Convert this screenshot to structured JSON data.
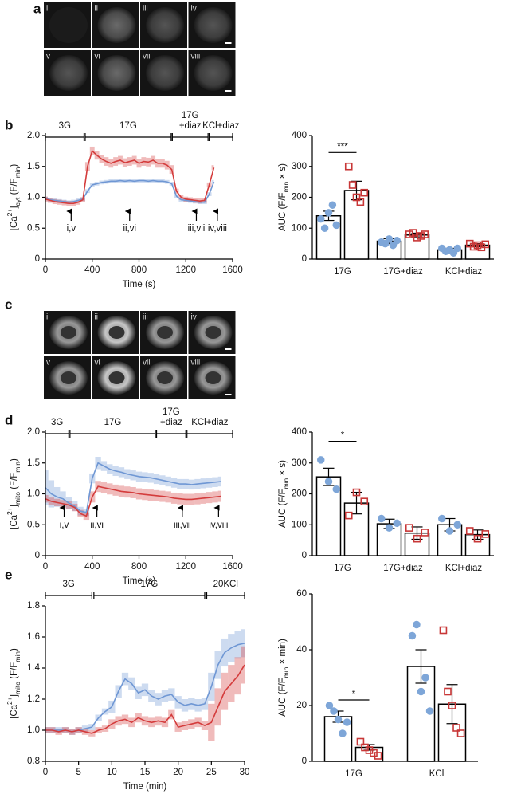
{
  "panel_labels": [
    "a",
    "b",
    "c",
    "d",
    "e"
  ],
  "image_panels": [
    {
      "labels": [
        "i",
        "ii",
        "iii",
        "iv",
        "v",
        "vi",
        "vii",
        "viii"
      ]
    },
    {
      "labels": [
        "i",
        "ii",
        "iii",
        "iv",
        "v",
        "vi",
        "vii",
        "viii"
      ]
    }
  ],
  "chart_data": [
    {
      "type": "line",
      "xlabel": "Time (s)",
      "ylabel": [
        {
          "text": "[Ca"
        },
        {
          "text": "2+",
          "shift": "super"
        },
        {
          "text": "]"
        },
        {
          "text": "cyt",
          "shift": "sub"
        },
        {
          "text": " (F/F"
        },
        {
          "text": "min",
          "shift": "sub"
        },
        {
          "text": ")"
        }
      ],
      "xlim": [
        0,
        1600
      ],
      "ylim": [
        0,
        2
      ],
      "xticks": [
        0,
        400,
        800,
        1200,
        1600
      ],
      "yticks": [
        0,
        0.5,
        {
          "value": 1,
          "label": "1.0"
        },
        1.5,
        {
          "value": 2,
          "label": "2.0"
        }
      ],
      "x": [
        0,
        40,
        80,
        120,
        160,
        200,
        240,
        280,
        320,
        360,
        400,
        440,
        480,
        520,
        560,
        600,
        640,
        680,
        720,
        760,
        800,
        840,
        880,
        920,
        960,
        1000,
        1040,
        1080,
        1120,
        1160,
        1200,
        1240,
        1280,
        1320,
        1360,
        1400,
        1440
      ],
      "series": [
        {
          "color": "#6f97d4",
          "values": [
            0.98,
            0.96,
            0.95,
            0.94,
            0.93,
            0.92,
            0.93,
            0.95,
            0.97,
            1.1,
            1.2,
            1.22,
            1.24,
            1.25,
            1.26,
            1.26,
            1.27,
            1.26,
            1.27,
            1.26,
            1.27,
            1.27,
            1.26,
            1.27,
            1.26,
            1.26,
            1.25,
            1.22,
            1.02,
            0.96,
            0.95,
            0.94,
            0.93,
            0.92,
            0.92,
            1.05,
            1.25
          ],
          "error": [
            0.03,
            0.03,
            0.03,
            0.03,
            0.03,
            0.03,
            0.03,
            0.03,
            0.03,
            0.03,
            0.03,
            0.03,
            0.03,
            0.03,
            0.03,
            0.03,
            0.03,
            0.03,
            0.03,
            0.03,
            0.03,
            0.03,
            0.03,
            0.03,
            0.03,
            0.03,
            0.03,
            0.03,
            0.03,
            0.03,
            0.03,
            0.03,
            0.03,
            0.03,
            0.03,
            0.03,
            0.03
          ]
        },
        {
          "color": "#d43c3c",
          "values": [
            0.97,
            0.95,
            0.93,
            0.92,
            0.91,
            0.9,
            0.9,
            0.92,
            0.96,
            1.5,
            1.75,
            1.68,
            1.62,
            1.58,
            1.55,
            1.58,
            1.6,
            1.56,
            1.58,
            1.6,
            1.55,
            1.58,
            1.57,
            1.6,
            1.55,
            1.55,
            1.52,
            1.45,
            1.1,
            1.0,
            0.97,
            0.96,
            0.95,
            0.94,
            0.95,
            1.2,
            1.48
          ],
          "error": [
            0.04,
            0.04,
            0.04,
            0.04,
            0.04,
            0.04,
            0.04,
            0.04,
            0.04,
            0.07,
            0.07,
            0.07,
            0.07,
            0.07,
            0.07,
            0.07,
            0.07,
            0.07,
            0.07,
            0.07,
            0.07,
            0.07,
            0.07,
            0.07,
            0.07,
            0.07,
            0.07,
            0.07,
            0.04,
            0.04,
            0.04,
            0.04,
            0.04,
            0.04,
            0.04,
            0.04,
            0.04
          ]
        }
      ],
      "protocol": [
        {
          "label": [
            "3G"
          ],
          "start": 0,
          "end": 330
        },
        {
          "label": [
            "17G"
          ],
          "start": 340,
          "end": 1075
        },
        {
          "label": [
            "17G",
            "+diaz"
          ],
          "start": 1085,
          "end": 1390
        },
        {
          "label": [
            "KCl+diaz"
          ],
          "start": 1400,
          "end": 1600
        }
      ],
      "arrows": [
        {
          "label": "i,v",
          "x": 220
        },
        {
          "label": "ii,vi",
          "x": 720
        },
        {
          "label": "iii,vii",
          "x": 1290
        },
        {
          "label": "iv,viii",
          "x": 1470
        }
      ]
    },
    {
      "type": "bar",
      "ylabel": [
        {
          "text": "AUC (F/F"
        },
        {
          "text": "min",
          "shift": "sub"
        },
        {
          "text": " × s)"
        }
      ],
      "categories": [
        "17G",
        "17G+diaz",
        "KCl+diaz"
      ],
      "ylim": [
        0,
        400
      ],
      "yticks": [
        0,
        100,
        200,
        300,
        400
      ],
      "series": [
        {
          "color": "#7ea6d8",
          "marker": "circle",
          "filled": true,
          "values": [
            140,
            58,
            30
          ],
          "error": [
            15,
            8,
            5
          ],
          "points": [
            [
              130,
              100,
              150,
              175,
              110
            ],
            [
              55,
              50,
              65,
              45,
              60
            ],
            [
              35,
              25,
              30,
              20,
              35
            ]
          ]
        },
        {
          "color": "#c83737",
          "marker": "square",
          "filled": false,
          "values": [
            222,
            78,
            45
          ],
          "error": [
            30,
            6,
            5
          ],
          "points": [
            [
              300,
              240,
              200,
              185,
              215
            ],
            [
              80,
              85,
              70,
              75,
              80
            ],
            [
              50,
              40,
              45,
              38,
              48
            ]
          ]
        }
      ],
      "annotations": [
        {
          "text": "***",
          "category": 0,
          "y": 345
        }
      ]
    },
    {
      "type": "line",
      "xlabel": "Time (s)",
      "ylabel": [
        {
          "text": "[Ca"
        },
        {
          "text": "2+",
          "shift": "super"
        },
        {
          "text": "]"
        },
        {
          "text": "mito",
          "shift": "sub"
        },
        {
          "text": " (F/F"
        },
        {
          "text": "min",
          "shift": "sub"
        },
        {
          "text": ")"
        }
      ],
      "xlim": [
        0,
        1600
      ],
      "ylim": [
        0,
        2
      ],
      "xticks": [
        0,
        400,
        800,
        1200,
        1600
      ],
      "yticks": [
        0,
        0.5,
        {
          "value": 1,
          "label": "1.0"
        },
        1.5,
        {
          "value": 2,
          "label": "2.0"
        }
      ],
      "x": [
        0,
        50,
        100,
        150,
        200,
        250,
        300,
        350,
        400,
        450,
        500,
        550,
        600,
        650,
        700,
        750,
        800,
        850,
        900,
        950,
        1000,
        1050,
        1100,
        1150,
        1200,
        1250,
        1300,
        1350,
        1400,
        1450,
        1500
      ],
      "series": [
        {
          "color": "#6f97d4",
          "values": [
            1.1,
            1.0,
            0.95,
            0.92,
            0.85,
            0.8,
            0.72,
            0.7,
            1.25,
            1.5,
            1.45,
            1.4,
            1.37,
            1.35,
            1.32,
            1.3,
            1.28,
            1.27,
            1.26,
            1.24,
            1.22,
            1.2,
            1.18,
            1.16,
            1.16,
            1.15,
            1.16,
            1.17,
            1.18,
            1.19,
            1.2
          ],
          "error": [
            0.28,
            0.22,
            0.16,
            0.12,
            0.1,
            0.08,
            0.07,
            0.06,
            0.08,
            0.1,
            0.08,
            0.08,
            0.08,
            0.08,
            0.08,
            0.08,
            0.08,
            0.08,
            0.08,
            0.08,
            0.08,
            0.08,
            0.08,
            0.08,
            0.08,
            0.08,
            0.08,
            0.08,
            0.08,
            0.08,
            0.08
          ]
        },
        {
          "color": "#d43c3c",
          "values": [
            0.92,
            0.88,
            0.86,
            0.84,
            0.82,
            0.78,
            0.68,
            0.64,
            0.95,
            1.12,
            1.1,
            1.08,
            1.06,
            1.04,
            1.03,
            1.02,
            1.0,
            0.99,
            0.98,
            0.97,
            0.96,
            0.95,
            0.93,
            0.92,
            0.91,
            0.91,
            0.92,
            0.93,
            0.94,
            0.95,
            0.96
          ],
          "error": [
            0.06,
            0.06,
            0.06,
            0.06,
            0.06,
            0.06,
            0.06,
            0.06,
            0.09,
            0.09,
            0.09,
            0.09,
            0.09,
            0.09,
            0.09,
            0.09,
            0.09,
            0.09,
            0.09,
            0.09,
            0.09,
            0.09,
            0.09,
            0.09,
            0.09,
            0.09,
            0.09,
            0.09,
            0.09,
            0.09,
            0.09
          ]
        }
      ],
      "protocol": [
        {
          "label": [
            "3G"
          ],
          "start": 0,
          "end": 200
        },
        {
          "label": [
            "17G"
          ],
          "start": 210,
          "end": 940
        },
        {
          "label": [
            "17G",
            "+diaz"
          ],
          "start": 950,
          "end": 1200
        },
        {
          "label": [
            "KCl+diaz"
          ],
          "start": 1210,
          "end": 1600
        }
      ],
      "arrows": [
        {
          "label": "i,v",
          "x": 160
        },
        {
          "label": "ii,vi",
          "x": 440
        },
        {
          "label": "iii,vii",
          "x": 1170
        },
        {
          "label": "iv,viii",
          "x": 1480
        }
      ]
    },
    {
      "type": "bar",
      "ylabel": [
        {
          "text": "AUC (F/F"
        },
        {
          "text": "min",
          "shift": "sub"
        },
        {
          "text": " × s)"
        }
      ],
      "categories": [
        "17G",
        "17G+diaz",
        "KCl+diaz"
      ],
      "ylim": [
        0,
        400
      ],
      "yticks": [
        0,
        100,
        200,
        300,
        400
      ],
      "series": [
        {
          "color": "#7ea6d8",
          "marker": "circle",
          "filled": true,
          "values": [
            255,
            103,
            100
          ],
          "error": [
            28,
            15,
            20
          ],
          "points": [
            [
              310,
              240,
              215
            ],
            [
              120,
              90,
              105
            ],
            [
              120,
              80,
              100
            ]
          ]
        },
        {
          "color": "#c83737",
          "marker": "square",
          "filled": false,
          "values": [
            170,
            73,
            68
          ],
          "error": [
            35,
            20,
            15
          ],
          "points": [
            [
              130,
              205,
              175
            ],
            [
              90,
              55,
              75
            ],
            [
              80,
              55,
              70
            ]
          ]
        }
      ],
      "annotations": [
        {
          "text": "*",
          "category": 0,
          "y": 370
        }
      ]
    },
    {
      "type": "line",
      "xlabel": "Time (min)",
      "ylabel": [
        {
          "text": "[Ca"
        },
        {
          "text": "2+",
          "shift": "super"
        },
        {
          "text": "]"
        },
        {
          "text": "mito",
          "shift": "sub"
        },
        {
          "text": " (F/F"
        },
        {
          "text": "min",
          "shift": "sub"
        },
        {
          "text": ")"
        }
      ],
      "xlim": [
        0,
        30
      ],
      "ylim": [
        0.8,
        1.8
      ],
      "xticks": [
        0,
        5,
        10,
        15,
        20,
        25,
        30
      ],
      "yticks": [
        0.8,
        {
          "value": 1,
          "label": "1.0"
        },
        1.2,
        1.4,
        1.6,
        1.8
      ],
      "x": [
        0,
        1,
        2,
        3,
        4,
        5,
        6,
        7,
        8,
        9,
        10,
        11,
        12,
        13,
        14,
        15,
        16,
        17,
        18,
        19,
        20,
        21,
        22,
        23,
        24,
        25,
        26,
        27,
        28,
        29,
        30
      ],
      "series": [
        {
          "color": "#6f97d4",
          "values": [
            1.0,
            1.0,
            1.0,
            1.0,
            0.99,
            1.0,
            1.01,
            1.02,
            1.08,
            1.12,
            1.15,
            1.25,
            1.33,
            1.3,
            1.24,
            1.26,
            1.22,
            1.2,
            1.22,
            1.23,
            1.18,
            1.16,
            1.17,
            1.16,
            1.17,
            1.28,
            1.42,
            1.5,
            1.53,
            1.55,
            1.56
          ],
          "error": [
            0.02,
            0.02,
            0.02,
            0.02,
            0.02,
            0.02,
            0.02,
            0.02,
            0.02,
            0.02,
            0.04,
            0.04,
            0.04,
            0.04,
            0.04,
            0.04,
            0.04,
            0.04,
            0.04,
            0.04,
            0.04,
            0.04,
            0.04,
            0.04,
            0.04,
            0.09,
            0.09,
            0.09,
            0.09,
            0.09,
            0.09
          ]
        },
        {
          "color": "#d43c3c",
          "values": [
            1.0,
            1.0,
            0.99,
            1.0,
            0.99,
            1.0,
            0.99,
            0.98,
            1.0,
            1.01,
            1.04,
            1.06,
            1.07,
            1.05,
            1.08,
            1.06,
            1.05,
            1.06,
            1.05,
            1.1,
            1.02,
            1.03,
            1.04,
            1.05,
            1.03,
            1.05,
            1.15,
            1.25,
            1.3,
            1.35,
            1.42
          ],
          "error": [
            0.02,
            0.02,
            0.02,
            0.02,
            0.02,
            0.02,
            0.02,
            0.02,
            0.02,
            0.02,
            0.03,
            0.03,
            0.03,
            0.03,
            0.03,
            0.03,
            0.03,
            0.03,
            0.03,
            0.03,
            0.03,
            0.03,
            0.03,
            0.03,
            0.03,
            0.12,
            0.12,
            0.12,
            0.12,
            0.12,
            0.12
          ]
        }
      ],
      "protocol": [
        {
          "label": [
            "3G"
          ],
          "start": 0,
          "end": 7
        },
        {
          "label": [
            "17G"
          ],
          "start": 7.3,
          "end": 24
        },
        {
          "label": [
            "20KCl"
          ],
          "start": 24.3,
          "end": 30
        }
      ],
      "arrows": []
    },
    {
      "type": "bar",
      "ylabel": [
        {
          "text": "AUC (F/F"
        },
        {
          "text": "min",
          "shift": "sub"
        },
        {
          "text": " × min)"
        }
      ],
      "categories": [
        "17G",
        "KCl"
      ],
      "ylim": [
        0,
        60
      ],
      "yticks": [
        0,
        20,
        40,
        60
      ],
      "series": [
        {
          "color": "#7ea6d8",
          "marker": "circle",
          "filled": true,
          "values": [
            16,
            34
          ],
          "error": [
            2,
            6
          ],
          "points": [
            [
              20,
              18,
              15,
              10,
              14
            ],
            [
              45,
              49,
              25,
              30,
              18
            ]
          ]
        },
        {
          "color": "#c83737",
          "marker": "square",
          "filled": false,
          "values": [
            5,
            20.5
          ],
          "error": [
            1,
            7
          ],
          "points": [
            [
              7,
              5,
              4,
              3,
              2
            ],
            [
              47,
              25,
              20,
              12,
              10
            ]
          ]
        }
      ],
      "annotations": [
        {
          "text": "*",
          "category": 0,
          "y": 22
        }
      ]
    }
  ]
}
